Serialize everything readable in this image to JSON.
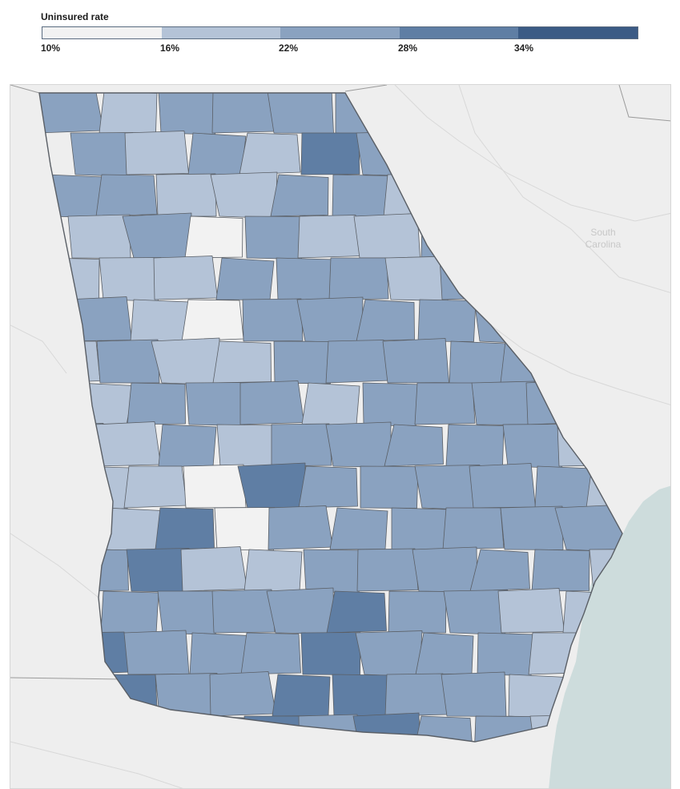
{
  "legend": {
    "title": "Uninsured rate",
    "ticks": [
      "10%",
      "16%",
      "22%",
      "28%",
      "34%"
    ],
    "bin_colors": [
      "#f2f2f2",
      "#b4c3d7",
      "#8aa2c0",
      "#5f7ea4",
      "#3b5b85"
    ]
  },
  "map": {
    "basemap_labels": [
      "South",
      "Carolina"
    ],
    "colors": {
      "land": "#eeeeee",
      "ocean": "#cddcdc",
      "state_line": "#9a9a9a",
      "county_line": "#5a5f66",
      "basemap_text": "#c8c8c8"
    }
  }
}
